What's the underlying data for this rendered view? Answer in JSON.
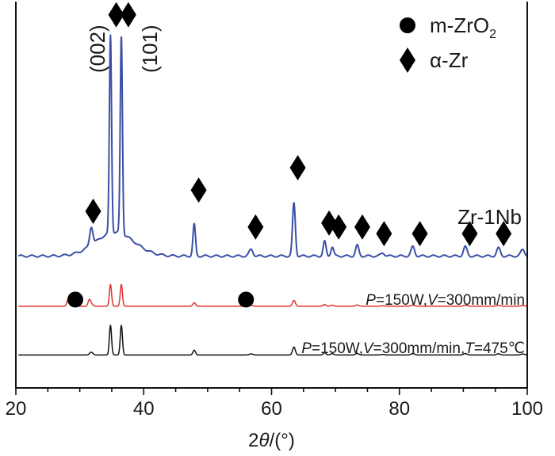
{
  "chart_data": {
    "type": "line",
    "xlabel_parts": [
      "2",
      "θ",
      "/(°)"
    ],
    "xlim": [
      20,
      100
    ],
    "x_ticks": [
      "20",
      "40",
      "60",
      "80",
      "100"
    ],
    "legend": {
      "placement": "top-right",
      "entries": [
        {
          "marker": "circle",
          "label": "m-ZrO",
          "sub": "2"
        },
        {
          "marker": "diamond",
          "label": "α-Zr",
          "sub": ""
        }
      ]
    },
    "peak_labels": [
      {
        "text": "(002)",
        "x": 34.8
      },
      {
        "text": "(101)",
        "x": 36.5
      }
    ],
    "series": [
      {
        "name": "Zr-1Nb",
        "color": "#3b4fa6",
        "baseline": 0.0,
        "scale": 1.0,
        "label_parts": [
          {
            "t": "Zr-1Nb",
            "i": false
          }
        ],
        "markers": [
          {
            "type": "diamond",
            "x": 32.1,
            "y": 0.17
          },
          {
            "type": "diamond",
            "x": 35.7,
            "y": 0.915
          },
          {
            "type": "diamond",
            "x": 37.6,
            "y": 0.915
          },
          {
            "type": "diamond",
            "x": 48.6,
            "y": 0.25
          },
          {
            "type": "diamond",
            "x": 57.5,
            "y": 0.11
          },
          {
            "type": "diamond",
            "x": 64.1,
            "y": 0.335
          },
          {
            "type": "diamond",
            "x": 69.0,
            "y": 0.125
          },
          {
            "type": "diamond",
            "x": 70.5,
            "y": 0.11
          },
          {
            "type": "diamond",
            "x": 74.2,
            "y": 0.11
          },
          {
            "type": "diamond",
            "x": 77.6,
            "y": 0.085
          },
          {
            "type": "diamond",
            "x": 83.2,
            "y": 0.085
          },
          {
            "type": "diamond",
            "x": 91.0,
            "y": 0.085
          },
          {
            "type": "diamond",
            "x": 96.3,
            "y": 0.085
          }
        ]
      },
      {
        "name": "P=150W,V=300mm/min",
        "color": "#e03030",
        "baseline": -0.19,
        "scale": 0.11,
        "label_parts": [
          {
            "t": "P",
            "i": true
          },
          {
            "t": "=150W,",
            "i": false
          },
          {
            "t": "V",
            "i": true
          },
          {
            "t": "=300mm/min",
            "i": false
          }
        ],
        "markers": [
          {
            "type": "circle",
            "x": 29.3,
            "y": -0.165
          },
          {
            "type": "circle",
            "x": 56.0,
            "y": -0.165
          }
        ]
      },
      {
        "name": "P=150W,V=300mm/min,T=475℃",
        "color": "#111111",
        "baseline": -0.375,
        "scale": 0.15,
        "label_parts": [
          {
            "t": "P",
            "i": true
          },
          {
            "t": "=150W,",
            "i": false
          },
          {
            "t": "V",
            "i": true
          },
          {
            "t": "=300mm/min,",
            "i": false
          },
          {
            "t": "T",
            "i": true
          },
          {
            "t": "=475℃",
            "i": false
          }
        ],
        "markers": []
      }
    ],
    "peaks": [
      {
        "x": 31.8,
        "h": 0.07,
        "w": 0.25
      },
      {
        "x": 34.8,
        "h": 0.75,
        "w": 0.17
      },
      {
        "x": 36.5,
        "h": 0.75,
        "w": 0.17
      },
      {
        "x": 47.9,
        "h": 0.12,
        "w": 0.2
      },
      {
        "x": 56.8,
        "h": 0.025,
        "w": 0.3
      },
      {
        "x": 63.5,
        "h": 0.2,
        "w": 0.22
      },
      {
        "x": 68.3,
        "h": 0.055,
        "w": 0.22
      },
      {
        "x": 69.5,
        "h": 0.035,
        "w": 0.22
      },
      {
        "x": 73.4,
        "h": 0.04,
        "w": 0.25
      },
      {
        "x": 77.4,
        "h": 0.012,
        "w": 0.3
      },
      {
        "x": 82.1,
        "h": 0.035,
        "w": 0.28
      },
      {
        "x": 90.3,
        "h": 0.035,
        "w": 0.28
      },
      {
        "x": 95.5,
        "h": 0.03,
        "w": 0.28
      },
      {
        "x": 99.3,
        "h": 0.025,
        "w": 0.3
      }
    ],
    "red_extra_peaks": [
      {
        "x": 28.2,
        "h": 0.05,
        "w": 0.2
      },
      {
        "x": 31.5,
        "h": 0.04,
        "w": 0.2
      }
    ],
    "blue_hump": {
      "x": 35.5,
      "h": 0.09,
      "w": 3.0
    }
  }
}
